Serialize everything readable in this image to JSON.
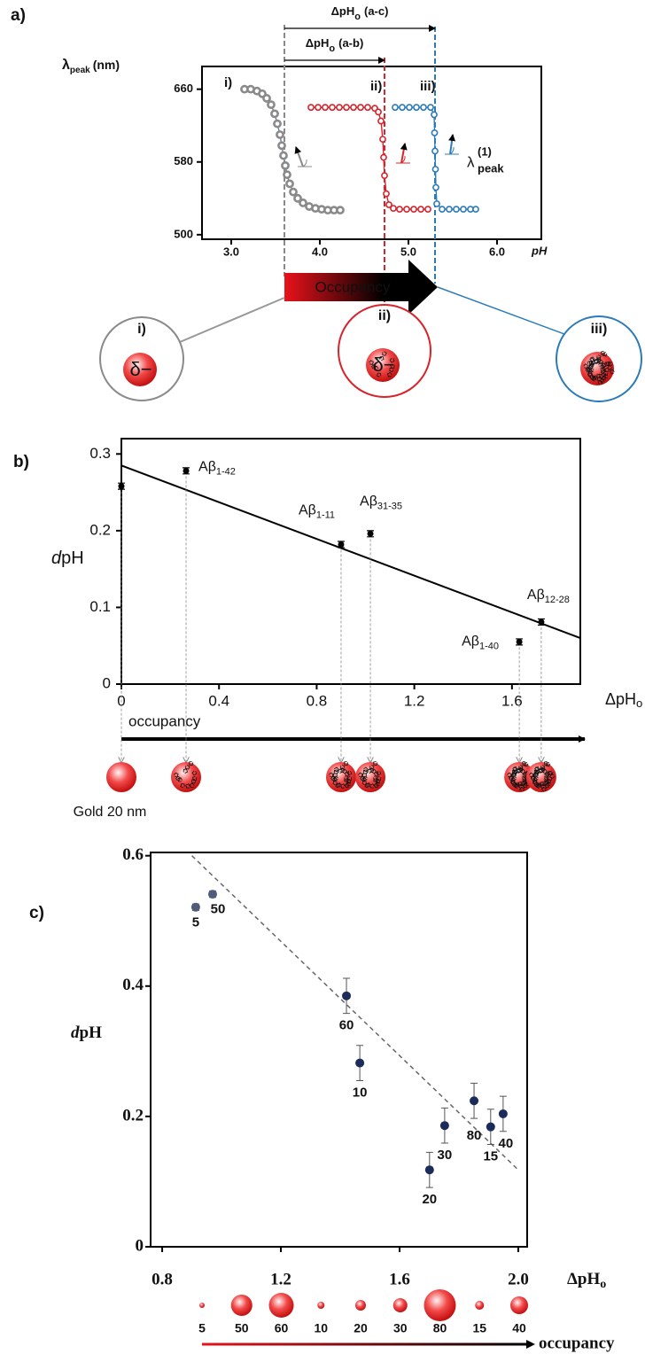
{
  "chart_data": [
    {
      "type": "line",
      "panel": "a)",
      "ylabel": [
        "λ",
        "peak",
        "(nm)"
      ],
      "xlabel": "pH",
      "xlim": [
        2.67,
        6.5
      ],
      "ylim": [
        495,
        685
      ],
      "xticks": [
        {
          "value": 3,
          "label": "3.0"
        },
        {
          "value": 4,
          "label": "4.0"
        },
        {
          "value": 5,
          "label": "5.0"
        },
        {
          "value": 6,
          "label": "6.0"
        }
      ],
      "yticks": [
        500,
        580,
        660
      ],
      "series": [
        {
          "name": "i)",
          "color": "#8a8a8a",
          "transition": 3.6,
          "x": [
            3.15,
            3.22,
            3.29,
            3.35,
            3.4,
            3.45,
            3.49,
            3.52,
            3.55,
            3.57,
            3.59,
            3.61,
            3.63,
            3.66,
            3.7,
            3.75,
            3.81,
            3.88,
            3.95,
            4.02,
            4.09,
            4.16,
            4.23
          ],
          "values": [
            660,
            660,
            658,
            655,
            650,
            643,
            633,
            622,
            610,
            598,
            587,
            576,
            566,
            556,
            547,
            540,
            535,
            531,
            529,
            528,
            527,
            527,
            527
          ]
        },
        {
          "name": "ii)",
          "color": "#d8232a",
          "transition": 4.73,
          "x": [
            3.9,
            3.98,
            4.06,
            4.14,
            4.22,
            4.3,
            4.38,
            4.46,
            4.54,
            4.62,
            4.66,
            4.69,
            4.71,
            4.72,
            4.73,
            4.75,
            4.78,
            4.83,
            4.9,
            4.98,
            5.06,
            5.14,
            5.22
          ],
          "values": [
            640,
            640,
            640,
            640,
            640,
            640,
            640,
            640,
            640,
            639,
            635,
            625,
            605,
            585,
            565,
            545,
            533,
            529,
            528,
            528,
            528,
            528,
            528
          ]
        },
        {
          "name": "iii)",
          "color": "#2b7bb9",
          "transition": 5.3,
          "x": [
            4.85,
            4.93,
            5.01,
            5.09,
            5.17,
            5.25,
            5.29,
            5.295,
            5.3,
            5.305,
            5.31,
            5.32,
            5.38,
            5.46,
            5.54,
            5.62,
            5.7,
            5.76
          ],
          "values": [
            640,
            640,
            640,
            640,
            640,
            640,
            632,
            612,
            592,
            572,
            552,
            534,
            528,
            528,
            528,
            528,
            528,
            528
          ]
        }
      ],
      "delta_annotations": [
        [
          "ΔpH",
          "o",
          "(a-c)"
        ],
        [
          "ΔpH",
          "o",
          "(a-b)"
        ]
      ],
      "slope_label": [
        "λ",
        "(1)",
        "peak"
      ],
      "occupancy": "Occupancy",
      "charge": "δ−"
    },
    {
      "type": "scatter",
      "panel": "b)",
      "ylabel": [
        "d",
        "pH"
      ],
      "xlabel": [
        "ΔpH",
        "o"
      ],
      "xlim": [
        0,
        1.88
      ],
      "ylim": [
        0,
        0.32
      ],
      "xticks": [
        0,
        0.4,
        0.8,
        1.2,
        1.6
      ],
      "yticks": [
        0,
        0.1,
        0.2,
        0.3
      ],
      "series": [
        {
          "color": "#000000",
          "x": [
            0,
            0.265,
            0.9,
            1.02,
            1.63,
            1.72
          ],
          "values": [
            0.258,
            0.278,
            0.182,
            0.196,
            0.055,
            0.081
          ],
          "errors": [
            0.004,
            0.004,
            0.004,
            0.004,
            0.004,
            0.004
          ],
          "labels": [
            null,
            [
              "Aβ",
              "1-42"
            ],
            [
              "Aβ",
              "1-11"
            ],
            [
              "Aβ",
              "31-35"
            ],
            [
              "Aβ",
              "1-40"
            ],
            [
              "Aβ",
              "12-28"
            ]
          ]
        }
      ],
      "fit": {
        "x": [
          0,
          1.88
        ],
        "values": [
          0.285,
          0.06
        ]
      },
      "occupancy": "occupancy",
      "reference": "Gold 20 nm"
    },
    {
      "type": "scatter",
      "panel": "c)",
      "ylabel": [
        "d",
        "pH"
      ],
      "xlabel": [
        "ΔpH",
        "o"
      ],
      "xlim": [
        0.761,
        2.03
      ],
      "ylim": [
        0,
        0.605
      ],
      "xticks": [
        0.8,
        1.2,
        1.6,
        {
          "value": 2,
          "label": "2.0"
        }
      ],
      "yticks": [
        0,
        0.2,
        0.4,
        0.6
      ],
      "series": [
        {
          "colors": [
            "#4f5c7c",
            "#4f5c7c",
            "#1c2b5a",
            "#1c2b5a",
            "#1c2b5a",
            "#1c2b5a",
            "#1c2b5a",
            "#1c2b5a",
            "#1c2b5a"
          ],
          "x": [
            0.913,
            0.97,
            1.421,
            1.466,
            1.701,
            1.752,
            1.851,
            1.907,
            1.949
          ],
          "values": [
            0.521,
            0.541,
            0.385,
            0.282,
            0.118,
            0.186,
            0.224,
            0.184,
            0.204
          ],
          "errors": [
            0.005,
            0.005,
            0.027,
            0.027,
            0.027,
            0.027,
            0.027,
            0.027,
            0.027
          ],
          "labels": [
            5,
            50,
            60,
            10,
            20,
            30,
            80,
            15,
            40
          ]
        }
      ],
      "fit": {
        "x": [
          0.9,
          2.0
        ],
        "values": [
          0.6,
          0.118
        ]
      },
      "occupancy": "occupancy"
    }
  ]
}
